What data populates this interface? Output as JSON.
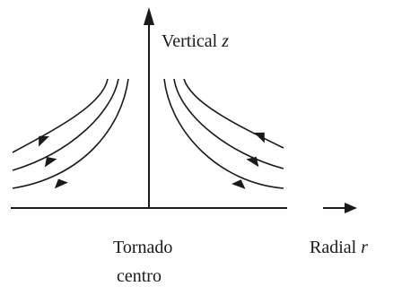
{
  "diagram": {
    "labels": {
      "vertical_axis": "Vertical",
      "vertical_var": "z",
      "center_line1": "Tornado",
      "center_line2": "centro",
      "radial_axis": "Radial",
      "radial_var": "r"
    },
    "colors": {
      "ink": "#1a1a1a",
      "background": "#ffffff"
    },
    "streamline_count_per_side": 4,
    "arrows_on_streamlines_per_side": 3
  }
}
